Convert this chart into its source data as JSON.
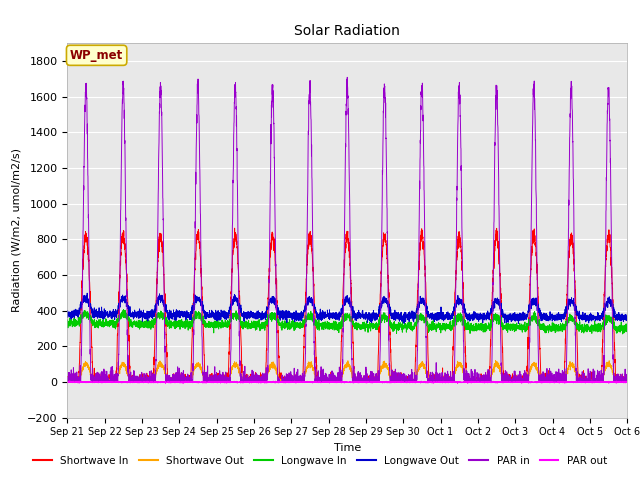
{
  "title": "Solar Radiation",
  "xlabel": "Time",
  "ylabel": "Radiation (W/m2, umol/m2/s)",
  "ylim": [
    -200,
    1900
  ],
  "yticks": [
    -200,
    0,
    200,
    400,
    600,
    800,
    1000,
    1200,
    1400,
    1600,
    1800
  ],
  "station_label": "WP_met",
  "bg_color": "#e8e8e8",
  "fig_color": "#ffffff",
  "num_days": 15,
  "x_labels": [
    "Sep 21",
    "Sep 22",
    "Sep 23",
    "Sep 24",
    "Sep 25",
    "Sep 26",
    "Sep 27",
    "Sep 28",
    "Sep 29",
    "Sep 30",
    "Oct 1",
    "Oct 2",
    "Oct 3",
    "Oct 4",
    "Oct 5",
    "Oct 6"
  ],
  "series": {
    "shortwave_in": {
      "color": "#ff0000",
      "label": "Shortwave In",
      "peak": 820,
      "noise": 20
    },
    "shortwave_out": {
      "color": "#ffa500",
      "label": "Shortwave Out",
      "peak": 100,
      "noise": 8
    },
    "longwave_in": {
      "color": "#00cc00",
      "label": "Longwave In",
      "base": 330,
      "day_bump": 55,
      "noise": 12,
      "trend": -30
    },
    "longwave_out": {
      "color": "#0000cc",
      "label": "Longwave Out",
      "base": 380,
      "day_bump": 90,
      "noise": 12,
      "trend": -20
    },
    "par_in": {
      "color": "#9900cc",
      "label": "PAR in",
      "peak": 1650,
      "noise": 30
    },
    "par_out": {
      "color": "#ff00ff",
      "label": "PAR out",
      "peak": 0,
      "noise": 2
    }
  }
}
